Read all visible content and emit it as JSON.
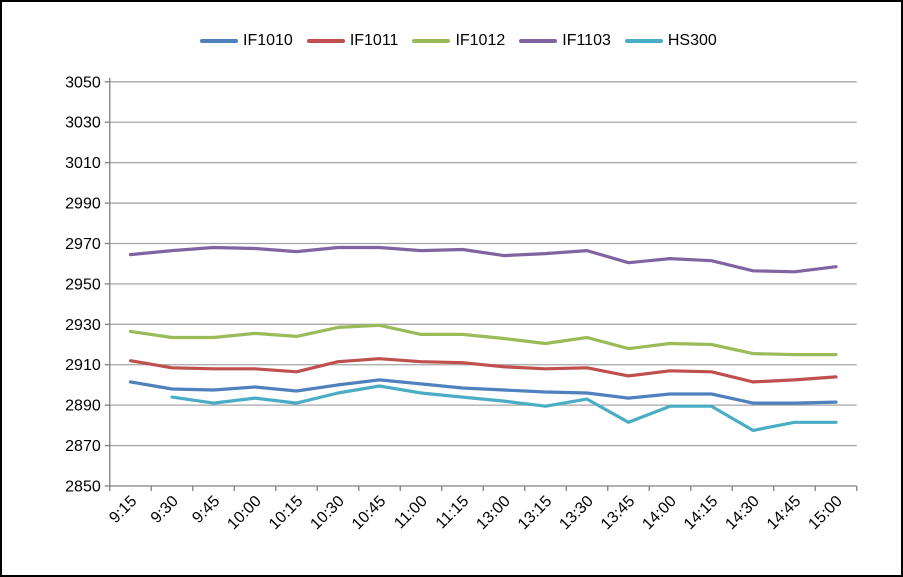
{
  "chart_data": {
    "type": "line",
    "title": "",
    "xlabel": "",
    "ylabel": "",
    "x_categories": [
      "9:15",
      "9:30",
      "9:45",
      "10:00",
      "10:15",
      "10:30",
      "10:45",
      "11:00",
      "11:15",
      "13:00",
      "13:15",
      "13:30",
      "13:45",
      "14:00",
      "14:15",
      "14:30",
      "14:45",
      "15:00"
    ],
    "y_axis": {
      "min": 2850,
      "max": 3050,
      "step": 20,
      "tick_labels": [
        "2850",
        "2870",
        "2890",
        "2910",
        "2930",
        "2950",
        "2970",
        "2990",
        "3010",
        "3030",
        "3050"
      ]
    },
    "grid": true,
    "legend_position": "top",
    "series": [
      {
        "name": "IF1010",
        "color": "#4F81BD",
        "values": [
          2901.5,
          2898,
          2897.5,
          2899,
          2897,
          2900,
          2902.5,
          2900.5,
          2898.5,
          2897.5,
          2896.5,
          2896,
          2893.5,
          2895.5,
          2895.5,
          2891,
          2891,
          2891.5
        ]
      },
      {
        "name": "IF1011",
        "color": "#C0504D",
        "values": [
          2912,
          2908.5,
          2908,
          2908,
          2906.5,
          2911.5,
          2913,
          2911.5,
          2911,
          2909,
          2908,
          2908.5,
          2904.5,
          2907,
          2906.5,
          2901.5,
          2902.5,
          2904
        ]
      },
      {
        "name": "IF1012",
        "color": "#9BBB59",
        "values": [
          2926.5,
          2923.5,
          2923.5,
          2925.5,
          2924,
          2928.5,
          2929.5,
          2925,
          2925,
          2923,
          2920.5,
          2923.5,
          2918,
          2920.5,
          2920,
          2915.5,
          2915,
          2915
        ]
      },
      {
        "name": "IF1103",
        "color": "#8064A2",
        "values": [
          2964.5,
          2966.5,
          2968,
          2967.5,
          2966,
          2968,
          2968,
          2966.5,
          2967,
          2964,
          2965,
          2966.5,
          2960.5,
          2962.5,
          2961.5,
          2956.5,
          2956,
          2958.5
        ]
      },
      {
        "name": "HS300",
        "color": "#4BACC6",
        "values": [
          null,
          2894,
          2891,
          2893.5,
          2891,
          2896,
          2899.5,
          2896,
          2894,
          2892,
          2889.5,
          2893,
          2881.5,
          2889.5,
          2889.5,
          2877.5,
          2881.5,
          2881.5
        ]
      }
    ]
  },
  "style_colors": {
    "gridline": "#A6A6A6",
    "axis": "#808080",
    "background": "#FFFFFF",
    "border": "#000000"
  }
}
